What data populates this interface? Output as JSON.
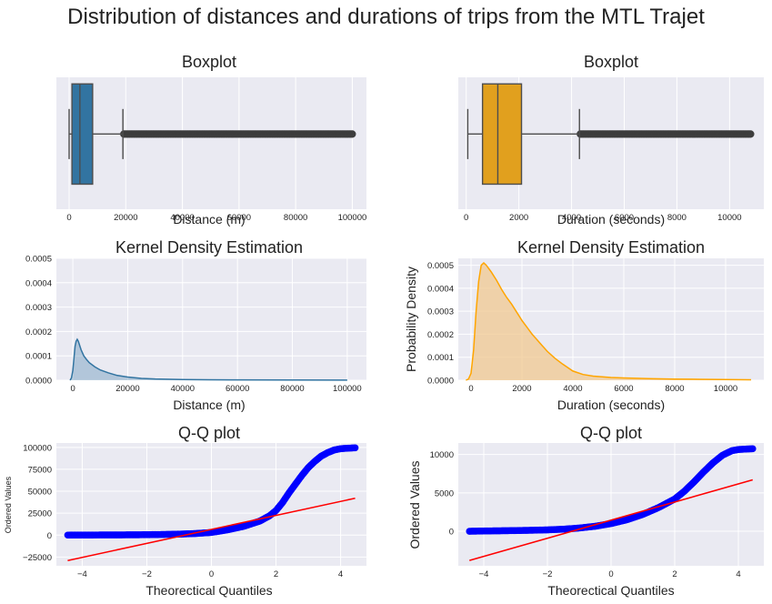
{
  "figure": {
    "title": "Distribution of distances and durations of trips from the MTL Trajet",
    "background": "#eaeaf2",
    "grid_color": "#ffffff"
  },
  "chart_data": [
    {
      "id": "box-distance",
      "type": "boxplot",
      "title": "Boxplot",
      "xlabel": "Distance (m)",
      "ylabel": "",
      "color": "#3274a1",
      "xlim": [
        -4500,
        105000
      ],
      "xticks": [
        0,
        20000,
        40000,
        60000,
        80000,
        100000
      ],
      "xtick_labels": [
        "0",
        "20000",
        "40000",
        "60000",
        "80000",
        "100000"
      ],
      "whisker_low": 0,
      "q1": 1000,
      "median": 3800,
      "q3": 8300,
      "whisker_high": 19000,
      "outlier_max": 100000,
      "outlier_color": "#3d3d3d"
    },
    {
      "id": "box-duration",
      "type": "boxplot",
      "title": "Boxplot",
      "xlabel": "Duration (seconds)",
      "ylabel": "",
      "color": "#e1a01e",
      "xlim": [
        -300,
        11300
      ],
      "xticks": [
        0,
        2000,
        4000,
        6000,
        8000,
        10000
      ],
      "xtick_labels": [
        "0",
        "2000",
        "4000",
        "6000",
        "8000",
        "10000"
      ],
      "whisker_low": 60,
      "q1": 620,
      "median": 1200,
      "q3": 2100,
      "whisker_high": 4300,
      "outlier_max": 10800,
      "outlier_color": "#3d3d3d"
    },
    {
      "id": "kde-distance",
      "type": "area",
      "title": "Kernel Density Estimation",
      "xlabel": "Distance (m)",
      "ylabel": "",
      "color": "#3274a1",
      "fill_color": "#3274a1",
      "xlim": [
        -6000,
        107000
      ],
      "ylim": [
        0,
        0.0005
      ],
      "xticks": [
        0,
        20000,
        40000,
        60000,
        80000,
        100000
      ],
      "xtick_labels": [
        "0",
        "20000",
        "40000",
        "60000",
        "80000",
        "100000"
      ],
      "yticks": [
        0,
        0.0001,
        0.0002,
        0.0003,
        0.0004,
        0.0005
      ],
      "ytick_labels": [
        "0.0000",
        "0.0001",
        "0.0002",
        "0.0003",
        "0.0004",
        "0.0005"
      ],
      "x": [
        -1000,
        -500,
        0,
        400,
        800,
        1200,
        1600,
        2000,
        3000,
        4000,
        5000,
        6000,
        8000,
        10000,
        13000,
        16000,
        20000,
        25000,
        30000,
        40000,
        50000,
        60000,
        80000,
        100000
      ],
      "y": [
        0,
        1e-05,
        4e-05,
        9e-05,
        0.000138,
        0.00016,
        0.000168,
        0.00016,
        0.000125,
        0.0001,
        8.5e-05,
        7.2e-05,
        5.5e-05,
        4.2e-05,
        3e-05,
        2e-05,
        1.3e-05,
        7.5e-06,
        5e-06,
        3e-06,
        2e-06,
        1.5e-06,
        1e-06,
        5e-07
      ]
    },
    {
      "id": "kde-duration",
      "type": "area",
      "title": "Kernel Density Estimation",
      "xlabel": "Duration (seconds)",
      "ylabel": "Probability Density",
      "color": "#ffa500",
      "fill_color": "#f0c890",
      "xlim": [
        -500,
        11500
      ],
      "ylim": [
        0,
        0.00053
      ],
      "xticks": [
        0,
        2000,
        4000,
        6000,
        8000,
        10000
      ],
      "xtick_labels": [
        "0",
        "2000",
        "4000",
        "6000",
        "8000",
        "10000"
      ],
      "yticks": [
        0,
        0.0001,
        0.0002,
        0.0003,
        0.0004,
        0.0005
      ],
      "ytick_labels": [
        "0.0000",
        "0.0001",
        "0.0002",
        "0.0003",
        "0.0004",
        "0.0005"
      ],
      "x": [
        -200,
        -100,
        0,
        100,
        200,
        300,
        400,
        500,
        600,
        700,
        800,
        1000,
        1200,
        1400,
        1600,
        1800,
        2000,
        2200,
        2400,
        2600,
        2800,
        3000,
        3300,
        3600,
        4000,
        4400,
        4800,
        5500,
        6000,
        7000,
        8000,
        9000,
        10000,
        11000
      ],
      "y": [
        0,
        5e-06,
        3e-05,
        0.00013,
        0.0003,
        0.00043,
        0.0005,
        0.00051,
        0.0005,
        0.000485,
        0.00047,
        0.000435,
        0.000395,
        0.00036,
        0.00033,
        0.000295,
        0.00026,
        0.00023,
        0.0002,
        0.000175,
        0.00015,
        0.000125,
        9.5e-05,
        7e-05,
        4e-05,
        2.5e-05,
        1.8e-05,
        1.2e-05,
        1e-05,
        7e-06,
        5e-06,
        4e-06,
        3e-06,
        2e-06
      ]
    },
    {
      "id": "qq-distance",
      "type": "scatter",
      "title": "Q-Q plot",
      "xlabel": "Theorectical Quantiles",
      "ylabel": "Ordered Values",
      "point_color": "#0000ff",
      "line_color": "#ff0000",
      "xlim": [
        -4.8,
        4.8
      ],
      "ylim": [
        -35000,
        105000
      ],
      "xticks": [
        -4,
        -2,
        0,
        2,
        4
      ],
      "xtick_labels": [
        "−4",
        "−2",
        "0",
        "2",
        "4"
      ],
      "yticks": [
        -25000,
        0,
        25000,
        50000,
        75000,
        100000
      ],
      "ytick_labels": [
        "−25000",
        "0",
        "25000",
        "50000",
        "75000",
        "100000"
      ],
      "x": [
        -4.45,
        -4.3,
        -4.1,
        -3.8,
        -3.5,
        -3.0,
        -2.5,
        -2.0,
        -1.5,
        -1.0,
        -0.5,
        0,
        0.5,
        1.0,
        1.5,
        1.8,
        2.0,
        2.2,
        2.4,
        2.6,
        2.8,
        3.0,
        3.2,
        3.4,
        3.6,
        3.8,
        4.0,
        4.2,
        4.45
      ],
      "y": [
        0,
        30,
        60,
        100,
        140,
        200,
        300,
        450,
        700,
        1100,
        1800,
        3000,
        6000,
        10000,
        16000,
        22000,
        28000,
        37000,
        48000,
        58000,
        68000,
        77000,
        84000,
        90000,
        94000,
        97000,
        98500,
        99000,
        99500
      ],
      "fit_line": {
        "x": [
          -4.45,
          4.45
        ],
        "y": [
          -29000,
          42000
        ]
      }
    },
    {
      "id": "qq-duration",
      "type": "scatter",
      "title": "Q-Q plot",
      "xlabel": "Theorectical Quantiles",
      "ylabel": "Ordered Values",
      "point_color": "#0000ff",
      "line_color": "#ff0000",
      "xlim": [
        -4.8,
        4.8
      ],
      "ylim": [
        -4500,
        11500
      ],
      "xticks": [
        -4,
        -2,
        0,
        2,
        4
      ],
      "xtick_labels": [
        "−4",
        "−2",
        "0",
        "2",
        "4"
      ],
      "yticks": [
        0,
        5000,
        10000
      ],
      "ytick_labels": [
        "0",
        "5000",
        "10000"
      ],
      "x": [
        -4.45,
        -4.2,
        -3.9,
        -3.5,
        -3.0,
        -2.5,
        -2.0,
        -1.5,
        -1.0,
        -0.5,
        0,
        0.5,
        1.0,
        1.5,
        2.0,
        2.3,
        2.6,
        2.9,
        3.2,
        3.5,
        3.8,
        4.0,
        4.2,
        4.45
      ],
      "y": [
        0,
        20,
        40,
        60,
        90,
        130,
        180,
        270,
        420,
        650,
        1000,
        1500,
        2200,
        3100,
        4200,
        5200,
        6400,
        7700,
        8900,
        9900,
        10500,
        10650,
        10700,
        10750
      ],
      "fit_line": {
        "x": [
          -4.45,
          4.45
        ],
        "y": [
          -3800,
          6700
        ]
      }
    }
  ]
}
